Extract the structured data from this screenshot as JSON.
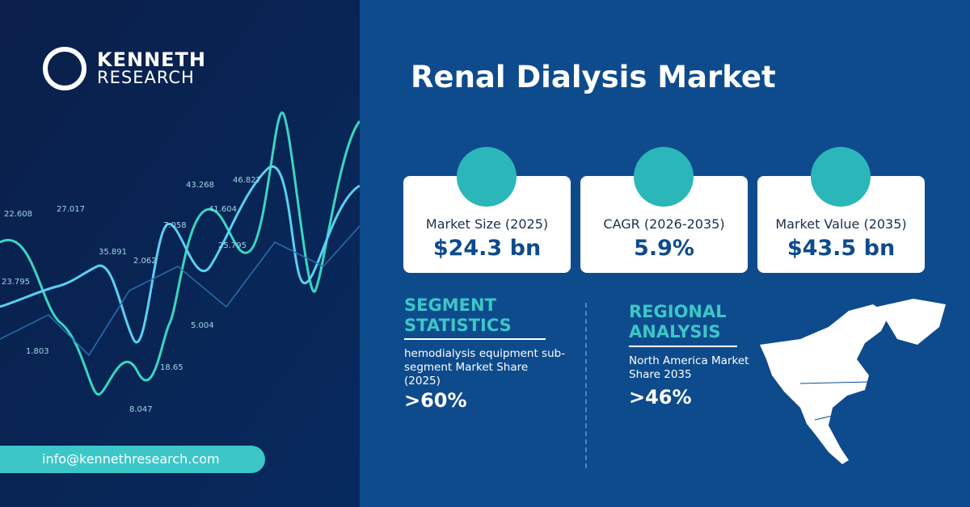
{
  "brand": {
    "line1": "KENNETH",
    "line2": "RESEARCH"
  },
  "title": "Renal Dialysis Market",
  "cards": [
    {
      "label": "Market Size (2025)",
      "value": "$24.3 bn"
    },
    {
      "label": "CAGR (2026-2035)",
      "value": "5.9%"
    },
    {
      "label": "Market Value  (2035)",
      "value": "$43.5 bn"
    }
  ],
  "segment": {
    "heading": "SEGMENT STATISTICS",
    "description": "hemodialysis equipment sub-segment Market Share (2025)",
    "value": ">60%"
  },
  "regional": {
    "heading": "REGIONAL ANALYSIS",
    "description": "North America Market Share 2035",
    "value": ">46%"
  },
  "contact": "info@kennethresearch.com",
  "background_labels": [
    "22.608",
    "27.017",
    "23.795",
    "35.891",
    "2.062",
    "7.058",
    "43.268",
    "41.604",
    "46.827",
    "25.795",
    "5.004",
    "18.65",
    "8.047",
    "1.803"
  ]
}
